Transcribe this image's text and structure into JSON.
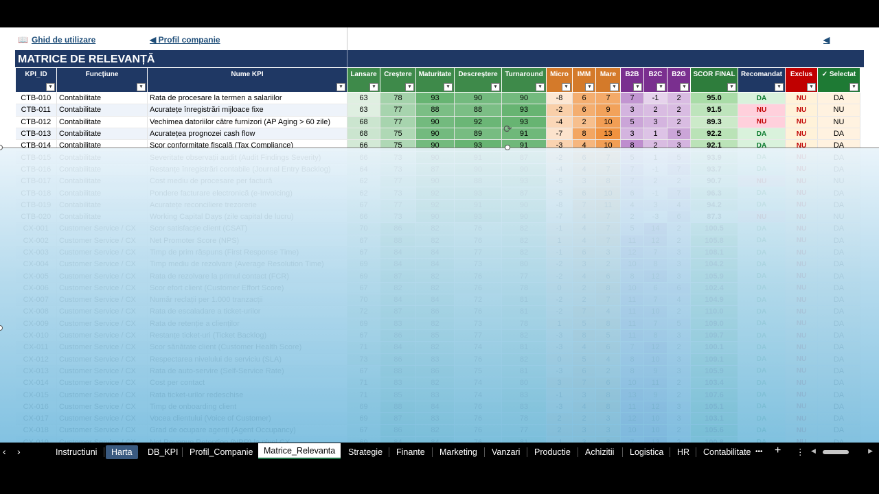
{
  "links": {
    "guide": "Ghid de utilizare",
    "profile": "◀ Profil companie",
    "back": "◀"
  },
  "title": "MATRICE DE RELEVANȚĂ",
  "columns": [
    "KPI_ID",
    "Funcțiune",
    "Nume KPI",
    "Lansare",
    "Creștere",
    "Maturitate",
    "Descreștere",
    "Turnaround",
    "Micro",
    "IMM",
    "Mare",
    "B2B",
    "B2C",
    "B2G",
    "SCOR FINAL",
    "Recomandat",
    "Exclus",
    "✓ Selectat"
  ],
  "colors": {
    "navy": "#1f3864",
    "stage": "#3e8a4a",
    "size": "#d47a2a",
    "mkt": "#7a2f8f",
    "score": "#2e7d3c",
    "exclus": "#c00000",
    "selectat": "#1e7a34",
    "da": "#0a7a2e",
    "nu": "#c00000"
  },
  "rows": [
    [
      "CTB-010",
      "Contabilitate",
      "Rata de procesare la termen a salariilor",
      "63",
      "78",
      "93",
      "90",
      "90",
      "-8",
      "6",
      "7",
      "7",
      "-1",
      "2",
      "95.0",
      "DA",
      "NU",
      "DA"
    ],
    [
      "CTB-011",
      "Contabilitate",
      "Acuratețe înregistrări mijloace fixe",
      "63",
      "77",
      "88",
      "88",
      "93",
      "-2",
      "6",
      "9",
      "3",
      "2",
      "2",
      "91.5",
      "NU",
      "NU",
      "NU"
    ],
    [
      "CTB-012",
      "Contabilitate",
      "Vechimea datoriilor către furnizori (AP Aging > 60 zile)",
      "68",
      "77",
      "90",
      "92",
      "93",
      "-4",
      "2",
      "10",
      "5",
      "3",
      "2",
      "89.3",
      "NU",
      "NU",
      "NU"
    ],
    [
      "CTB-013",
      "Contabilitate",
      "Acuratețea prognozei cash flow",
      "68",
      "75",
      "90",
      "89",
      "91",
      "-7",
      "8",
      "13",
      "3",
      "1",
      "5",
      "92.2",
      "DA",
      "NU",
      "DA"
    ],
    [
      "CTB-014",
      "Contabilitate",
      "Scor conformitate fiscală (Tax Compliance)",
      "66",
      "75",
      "90",
      "93",
      "91",
      "-3",
      "4",
      "10",
      "8",
      "2",
      "3",
      "92.1",
      "DA",
      "NU",
      "DA"
    ],
    [
      "CTB-015",
      "Contabilitate",
      "Severitate observații audit (Audit Findings Severity)",
      "66",
      "73",
      "90",
      "91",
      "87",
      "-2",
      "6",
      "7",
      "5",
      "1",
      "5",
      "93.9",
      "DA",
      "NU",
      "DA"
    ],
    [
      "CTB-016",
      "Contabilitate",
      "Restanțe înregistrări contabile (Journal Entry Backlog)",
      "64",
      "73",
      "87",
      "90",
      "90",
      "-4",
      "4",
      "7",
      "7",
      "-1",
      "7",
      "93.7",
      "DA",
      "NU",
      "DA"
    ],
    [
      "CTB-017",
      "Contabilitate",
      "Cost mediu de procesare per factură",
      "62",
      "77",
      "90",
      "88",
      "93",
      "-5",
      "3",
      "8",
      "7",
      "2",
      "2",
      "90.7",
      "NU",
      "NU",
      "NU"
    ],
    [
      "CTB-018",
      "Contabilitate",
      "Pondere facturare electronică (e-Invoicing)",
      "62",
      "73",
      "92",
      "93",
      "87",
      "-5",
      "6",
      "10",
      "6",
      "-1",
      "7",
      "96.3",
      "DA",
      "NU",
      "DA"
    ],
    [
      "CTB-019",
      "Contabilitate",
      "Acuratețe reconciliere trezorerie",
      "67",
      "77",
      "92",
      "91",
      "90",
      "-8",
      "7",
      "11",
      "4",
      "3",
      "4",
      "94.2",
      "DA",
      "NU",
      "DA"
    ],
    [
      "CTB-020",
      "Contabilitate",
      "Working Capital Days (zile capital de lucru)",
      "66",
      "73",
      "90",
      "93",
      "90",
      "-7",
      "4",
      "7",
      "2",
      "-3",
      "6",
      "87.3",
      "NU",
      "NU",
      "NU"
    ],
    [
      "CX-001",
      "Customer Service / CX",
      "Scor satisfacție client (CSAT)",
      "70",
      "86",
      "82",
      "76",
      "82",
      "-1",
      "4",
      "7",
      "5",
      "14",
      "2",
      "100.5",
      "DA",
      "NU",
      "DA"
    ],
    [
      "CX-002",
      "Customer Service / CX",
      "Net Promoter Score (NPS)",
      "67",
      "88",
      "82",
      "76",
      "82",
      "1",
      "4",
      "7",
      "11",
      "12",
      "2",
      "105.8",
      "DA",
      "NU",
      "DA"
    ],
    [
      "CX-003",
      "Customer Service / CX",
      "Timp de prim răspuns (First Response Time)",
      "67",
      "84",
      "84",
      "77",
      "82",
      "-1",
      "6",
      "3",
      "12",
      "7",
      "3",
      "108.1",
      "DA",
      "NU",
      "DA"
    ],
    [
      "CX-004",
      "Customer Service / CX",
      "Timp mediu de rezolvare (Average Resolution Time)",
      "69",
      "84",
      "84",
      "73",
      "80",
      "-2",
      "3",
      "2",
      "10",
      "8",
      "3",
      "104.2",
      "DA",
      "NU",
      "DA"
    ],
    [
      "CX-005",
      "Customer Service / CX",
      "Rata de rezolvare la primul contact (FCR)",
      "69",
      "87",
      "82",
      "76",
      "77",
      "-2",
      "4",
      "6",
      "8",
      "12",
      "3",
      "105.9",
      "DA",
      "NU",
      "DA"
    ],
    [
      "CX-006",
      "Customer Service / CX",
      "Scor efort client (Customer Effort Score)",
      "67",
      "82",
      "82",
      "76",
      "78",
      "0",
      "2",
      "8",
      "10",
      "6",
      "6",
      "102.4",
      "DA",
      "NU",
      "DA"
    ],
    [
      "CX-007",
      "Customer Service / CX",
      "Număr reclații per 1.000 tranzacții",
      "70",
      "84",
      "84",
      "72",
      "81",
      "-2",
      "2",
      "7",
      "11",
      "7",
      "4",
      "104.9",
      "DA",
      "NU",
      "DA"
    ],
    [
      "CX-008",
      "Customer Service / CX",
      "Rata de escaladare a ticket-urilor",
      "72",
      "87",
      "86",
      "76",
      "81",
      "-2",
      "7",
      "4",
      "11",
      "10",
      "2",
      "110.0",
      "DA",
      "NU",
      "DA"
    ],
    [
      "CX-009",
      "Customer Service / CX",
      "Rata de retenție a clienților",
      "69",
      "83",
      "82",
      "73",
      "78",
      "1",
      "5",
      "8",
      "11",
      "7",
      "5",
      "109.0",
      "DA",
      "NU",
      "DA"
    ],
    [
      "CX-010",
      "Customer Service / CX",
      "Restanțe ticket-uri (Ticket Backlog)",
      "67",
      "86",
      "85",
      "77",
      "82",
      "-3",
      "8",
      "5",
      "11",
      "8",
      "3",
      "109.7",
      "DA",
      "NU",
      "DA"
    ],
    [
      "CX-011",
      "Customer Service / CX",
      "Scor sănătate client (Customer Health Score)",
      "71",
      "84",
      "82",
      "74",
      "81",
      "-3",
      "4",
      "6",
      "7",
      "12",
      "2",
      "100.1",
      "DA",
      "NU",
      "DA"
    ],
    [
      "CX-012",
      "Customer Service / CX",
      "Respectarea nivelului de serviciu (SLA)",
      "73",
      "86",
      "83",
      "76",
      "82",
      "0",
      "5",
      "4",
      "8",
      "10",
      "3",
      "109.1",
      "DA",
      "NU",
      "DA"
    ],
    [
      "CX-013",
      "Customer Service / CX",
      "Rata de auto-servire (Self-Service Rate)",
      "67",
      "88",
      "86",
      "75",
      "81",
      "-3",
      "6",
      "2",
      "8",
      "9",
      "3",
      "105.9",
      "DA",
      "NU",
      "DA"
    ],
    [
      "CX-014",
      "Customer Service / CX",
      "Cost per contact",
      "71",
      "83",
      "82",
      "74",
      "80",
      "3",
      "7",
      "6",
      "10",
      "11",
      "2",
      "103.4",
      "DA",
      "NU",
      "DA"
    ],
    [
      "CX-015",
      "Customer Service / CX",
      "Rata ticket-urilor redeschise",
      "71",
      "85",
      "83",
      "74",
      "83",
      "-1",
      "3",
      "8",
      "13",
      "9",
      "2",
      "107.6",
      "DA",
      "NU",
      "DA"
    ],
    [
      "CX-016",
      "Customer Service / CX",
      "Timp de onboarding client",
      "69",
      "88",
      "84",
      "76",
      "83",
      "-3",
      "4",
      "8",
      "11",
      "12",
      "3",
      "105.1",
      "DA",
      "NU",
      "DA"
    ],
    [
      "CX-017",
      "Customer Service / CX",
      "Vocea clientului (Voice of Customer)",
      "69",
      "87",
      "83",
      "76",
      "78",
      "2",
      "2",
      "3",
      "12",
      "10",
      "3",
      "103.1",
      "DA",
      "NU",
      "DA"
    ],
    [
      "CX-018",
      "Customer Service / CX",
      "Grad de ocupare agenți (Agent Occupancy)",
      "67",
      "86",
      "82",
      "76",
      "77",
      "2",
      "3",
      "3",
      "10",
      "10",
      "2",
      "105.6",
      "DA",
      "NU",
      "DA"
    ],
    [
      "CX-019",
      "Customer Service / CX",
      "Net Revenue Retention (NRR) la nivel CX",
      "69",
      "84",
      "84",
      "76",
      "81",
      "-1",
      "3",
      "8",
      "7",
      "13",
      "2",
      "100.8",
      "DA",
      "NU",
      "DA"
    ]
  ],
  "tabs": [
    "Instructiuni",
    "Harta",
    "DB_KPI",
    "Profil_Companie",
    "Matrice_Relevanta",
    "Strategie",
    "Finante",
    "Marketing",
    "Vanzari",
    "Productie",
    "Achizitii",
    "Logistica",
    "HR",
    "Contabilitate"
  ],
  "tab_icons": {
    "more": "•••",
    "add": "+",
    "menu": "⋮",
    "nav_prev": "‹",
    "nav_next": "›",
    "scroll_left": "◀",
    "scroll_right": "▶"
  }
}
